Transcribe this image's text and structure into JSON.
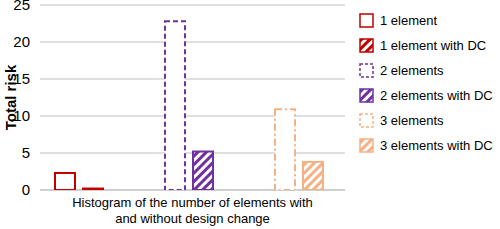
{
  "chart_data": {
    "type": "bar",
    "x_label": "Histogram of the number of elements with and without design change",
    "y_label": "Total risk",
    "categories": [
      null
    ],
    "series": [
      {
        "name": "1 element",
        "color": "#c00000",
        "marker": "hollow",
        "line_style": "solid",
        "values": [
          2.3
        ]
      },
      {
        "name": "1 element with DC",
        "color": "#c00000",
        "marker": "hatch",
        "line_style": "solid",
        "values": [
          0.2
        ]
      },
      {
        "name": "2 elements",
        "color": "#7030a0",
        "marker": "hollow",
        "line_style": "dashed",
        "values": [
          22.8
        ]
      },
      {
        "name": "2 elements with DC",
        "color": "#7030a0",
        "marker": "hatch",
        "line_style": "solid",
        "values": [
          5.2
        ]
      },
      {
        "name": "3 elements",
        "color": "#f4b183",
        "marker": "hollow",
        "line_style": "dash-dot",
        "values": [
          10.9
        ]
      },
      {
        "name": "3 elements with DC",
        "color": "#f4b183",
        "marker": "hatch",
        "line_style": "solid",
        "values": [
          3.8
        ]
      }
    ],
    "ylim": [
      0,
      25
    ],
    "yticks": [
      0,
      5,
      10,
      15,
      20,
      25
    ],
    "grid": true,
    "legend": "right"
  }
}
